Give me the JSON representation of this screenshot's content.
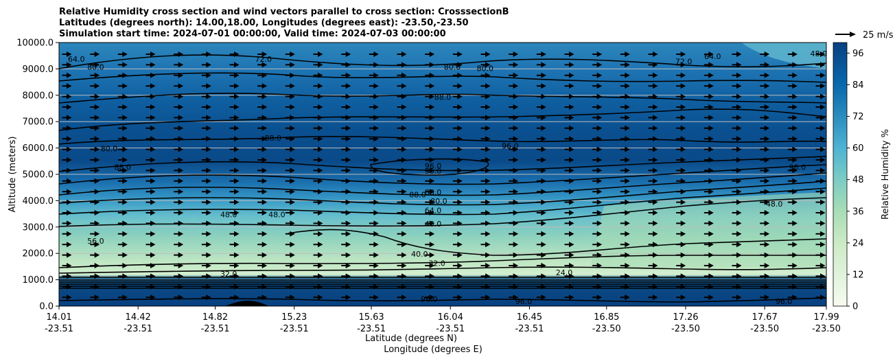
{
  "chart_data": {
    "type": "heatmap",
    "title_lines": [
      "Relative Humidity cross section and wind vectors parallel to cross section: CrosssectionB",
      "Latitudes (degrees north): 14.00,18.00, Longitudes (degrees east): -23.50,-23.50",
      "Simulation start time: 2024-07-01 00:00:00, Valid time: 2024-07-03 00:00:00"
    ],
    "xlabel": "Latitude (degrees N)",
    "xlabel2": "Longitude (degrees E)",
    "ylabel": "Altitude (meters)",
    "colorbar_label": "Relative Humidity %",
    "quiver_key": "25 m/s",
    "ylim": [
      0,
      10000
    ],
    "y_ticks": [
      "0.0",
      "1000.0",
      "2000.0",
      "3000.0",
      "4000.0",
      "5000.0",
      "6000.0",
      "7000.0",
      "8000.0",
      "9000.0",
      "10000.0"
    ],
    "x_ticks": [
      {
        "lat": "14.01",
        "lon": "-23.51"
      },
      {
        "lat": "14.42",
        "lon": "-23.51"
      },
      {
        "lat": "14.82",
        "lon": "-23.51"
      },
      {
        "lat": "15.23",
        "lon": "-23.51"
      },
      {
        "lat": "15.63",
        "lon": "-23.51"
      },
      {
        "lat": "16.04",
        "lon": "-23.51"
      },
      {
        "lat": "16.45",
        "lon": "-23.51"
      },
      {
        "lat": "16.85",
        "lon": "-23.50"
      },
      {
        "lat": "17.26",
        "lon": "-23.50"
      },
      {
        "lat": "17.67",
        "lon": "-23.50"
      },
      {
        "lat": "17.99",
        "lon": "-23.50"
      }
    ],
    "colorbar_range": [
      0,
      100
    ],
    "colorbar_ticks": [
      "0",
      "12",
      "24",
      "36",
      "48",
      "60",
      "72",
      "84",
      "96"
    ],
    "contour_labels": [
      {
        "text": "64.0",
        "lat": 14.1,
        "alt": 9300
      },
      {
        "text": "80.0",
        "lat": 14.2,
        "alt": 9000
      },
      {
        "text": "72.0",
        "lat": 15.07,
        "alt": 9300
      },
      {
        "text": "80.0",
        "lat": 16.05,
        "alt": 9000
      },
      {
        "text": "80.0",
        "lat": 16.22,
        "alt": 8950
      },
      {
        "text": "72.0",
        "lat": 17.25,
        "alt": 9200
      },
      {
        "text": "64.0",
        "lat": 17.4,
        "alt": 9400
      },
      {
        "text": "88.0",
        "lat": 16.0,
        "alt": 7850
      },
      {
        "text": "96.0",
        "lat": 16.35,
        "alt": 6000
      },
      {
        "text": "96.0",
        "lat": 15.95,
        "alt": 5250
      },
      {
        "text": "96.0",
        "lat": 15.95,
        "alt": 5050
      },
      {
        "text": "88.0",
        "lat": 15.87,
        "alt": 4150
      },
      {
        "text": "88.0",
        "lat": 15.95,
        "alt": 4250
      },
      {
        "text": "80.0",
        "lat": 15.98,
        "alt": 3900
      },
      {
        "text": "64.0",
        "lat": 15.95,
        "alt": 3550
      },
      {
        "text": "48.0",
        "lat": 15.95,
        "alt": 3050
      },
      {
        "text": "80.0",
        "lat": 14.27,
        "alt": 5900
      },
      {
        "text": "88.0",
        "lat": 14.34,
        "alt": 5200
      },
      {
        "text": "88.0",
        "lat": 15.12,
        "alt": 6300
      },
      {
        "text": "48.0",
        "lat": 14.89,
        "alt": 3400
      },
      {
        "text": "48.0",
        "lat": 15.14,
        "alt": 3400
      },
      {
        "text": "56.0",
        "lat": 14.2,
        "alt": 2400
      },
      {
        "text": "40.0",
        "lat": 15.88,
        "alt": 1900
      },
      {
        "text": "32.0",
        "lat": 15.97,
        "alt": 1550
      },
      {
        "text": "24.0",
        "lat": 16.63,
        "alt": 1200
      },
      {
        "text": "32.0",
        "lat": 14.89,
        "alt": 1150
      },
      {
        "text": "96.0",
        "lat": 15.93,
        "alt": 200
      },
      {
        "text": "96.0",
        "lat": 16.42,
        "alt": 100
      },
      {
        "text": "96.0",
        "lat": 17.77,
        "alt": 100
      },
      {
        "text": "48.0",
        "lat": 17.72,
        "alt": 3800
      },
      {
        "text": "96.0",
        "lat": 17.84,
        "alt": 5200
      },
      {
        "text": "48.0",
        "lat": 17.95,
        "alt": 9500
      }
    ]
  }
}
